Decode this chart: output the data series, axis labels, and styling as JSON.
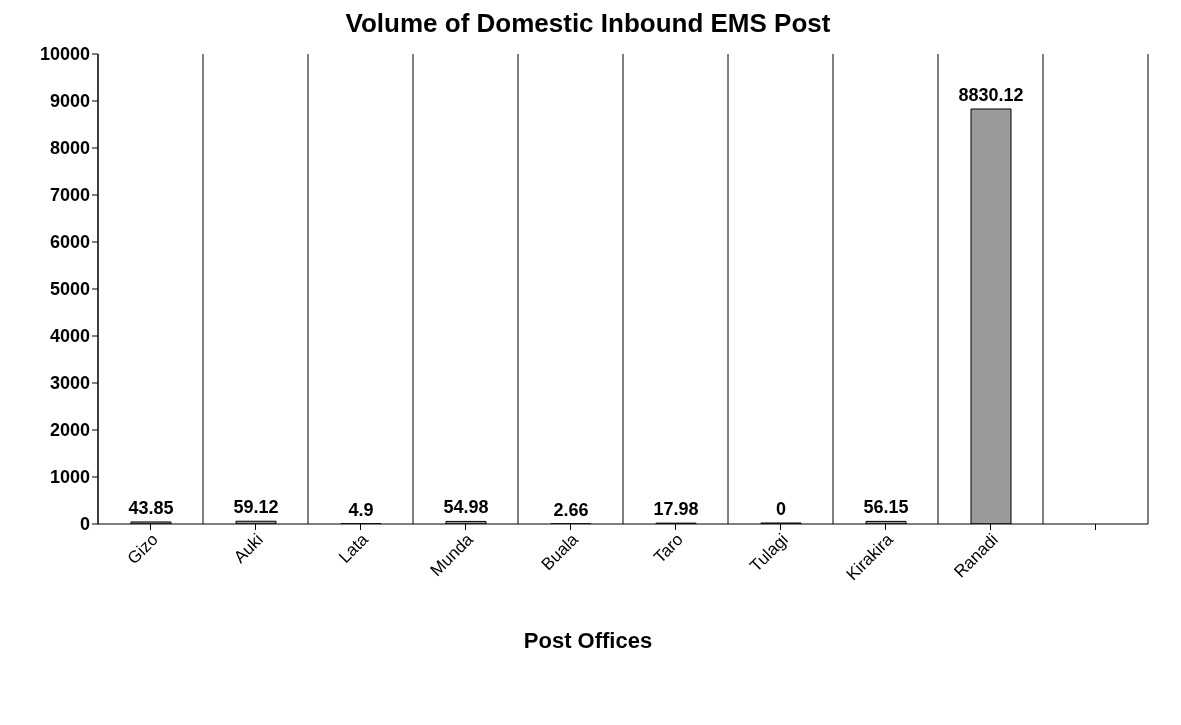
{
  "chart_data": {
    "type": "bar",
    "title": "Volume of Domestic Inbound EMS Post",
    "xlabel": "Post Offices",
    "categories": [
      "Gizo",
      "Auki",
      "Lata",
      "Munda",
      "Buala",
      "Taro",
      "Tulagi",
      "Kirakira",
      "Ranadi",
      null
    ],
    "values": [
      43.85,
      59.12,
      4.9,
      54.98,
      2.66,
      17.98,
      0,
      56.15,
      8830.12,
      null
    ],
    "color": "#9a9a9a",
    "ylim": [
      0,
      10000
    ],
    "yticks": [
      0,
      1000,
      2000,
      3000,
      4000,
      5000,
      6000,
      7000,
      8000,
      9000,
      10000
    ],
    "grid": "x",
    "data_labels": true
  }
}
